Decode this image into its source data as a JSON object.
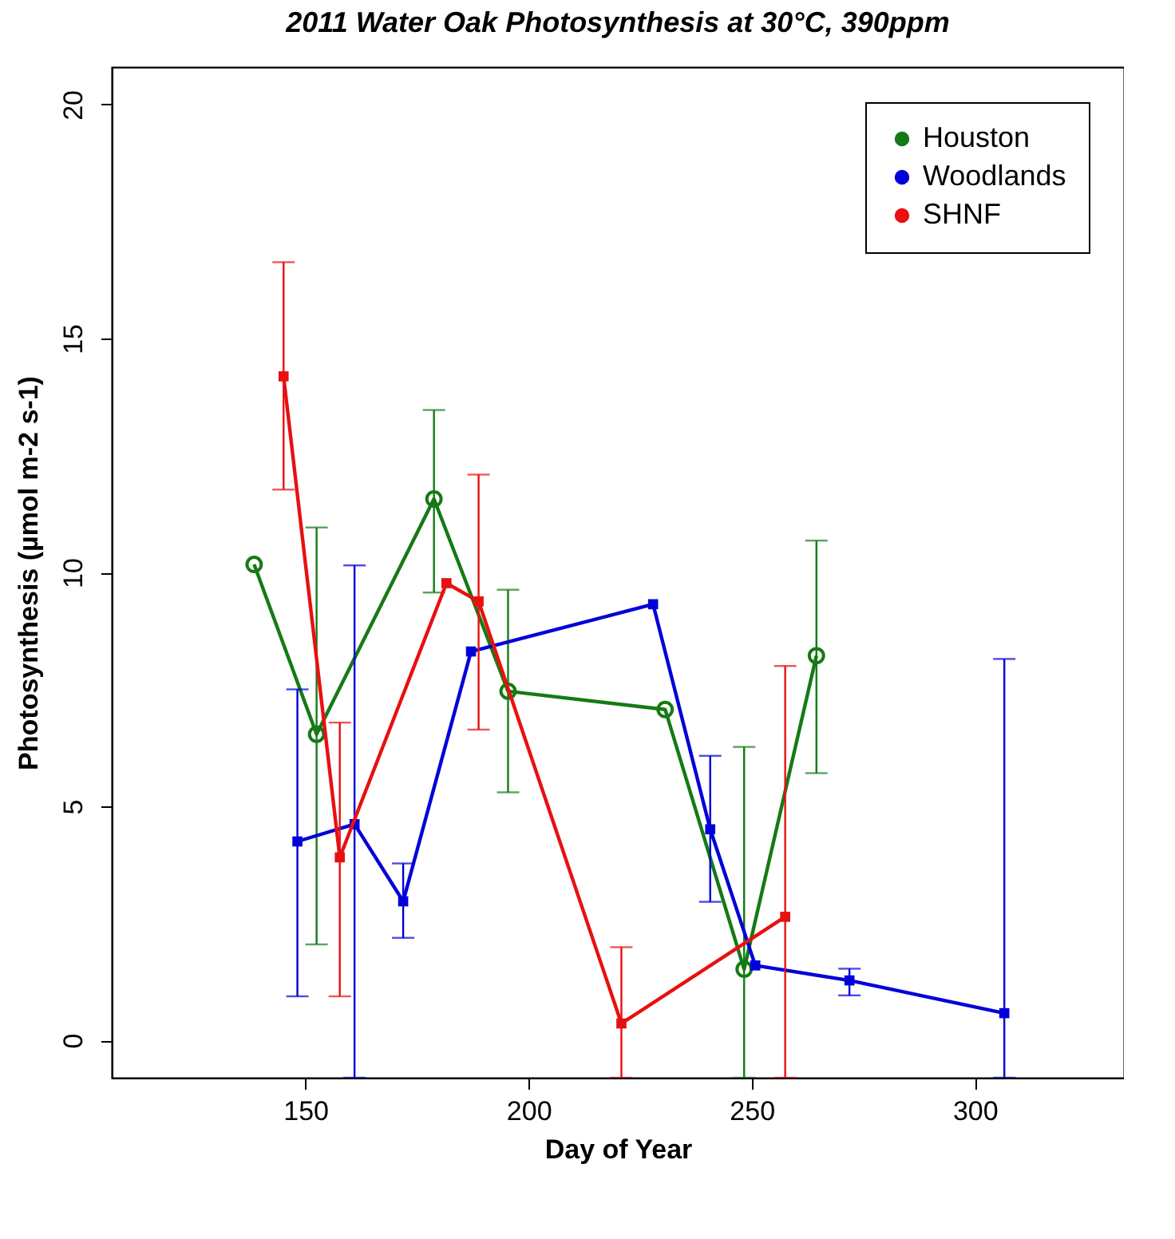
{
  "chart_data": {
    "type": "line",
    "title": "2011 Water Oak Photosynthesis at 30°C, 390ppm",
    "xlabel": "Day of Year",
    "ylabel": "Photosynthesis (µmol m-2 s-1)",
    "xlim": [
      106.6,
      333.4
    ],
    "xticks": [
      150,
      200,
      250,
      300
    ],
    "ylim": [
      -0.8,
      20.8
    ],
    "yticks": [
      0,
      5,
      10,
      15,
      20
    ],
    "grid": false,
    "legend": "top right",
    "line_style": "solid",
    "series": [
      {
        "name": "Houston",
        "color": "#157a15",
        "marker": "circle",
        "x": [
          138.5,
          152.5,
          178.8,
          195.4,
          230.6,
          248.3,
          264.5
        ],
        "values": [
          10.17,
          6.54,
          11.57,
          7.46,
          7.07,
          1.52,
          8.22
        ],
        "errors": [
          null,
          [
            2.05,
            10.96
          ],
          [
            9.57,
            13.47
          ],
          [
            5.3,
            9.63
          ],
          null,
          [
            -0.8,
            6.27
          ],
          [
            5.71,
            10.68
          ]
        ]
      },
      {
        "name": "Woodlands",
        "color": "#0000d8",
        "marker": "square",
        "x": [
          148.2,
          161.0,
          171.9,
          187.1,
          227.9,
          240.7,
          250.8,
          271.9,
          306.6
        ],
        "values": [
          4.25,
          4.62,
          2.97,
          8.31,
          9.32,
          4.51,
          1.6,
          1.28,
          0.58
        ],
        "errors": [
          [
            0.94,
            7.5
          ],
          [
            -0.8,
            10.15
          ],
          [
            2.19,
            3.78
          ],
          null,
          null,
          [
            2.96,
            6.08
          ],
          null,
          [
            0.96,
            1.53
          ],
          [
            -0.8,
            8.15
          ]
        ]
      },
      {
        "name": "SHNF",
        "color": "#e81010",
        "marker": "square",
        "x": [
          145.1,
          157.7,
          181.6,
          188.8,
          220.8,
          257.5
        ],
        "values": [
          14.19,
          3.91,
          9.77,
          9.38,
          0.36,
          2.64
        ],
        "errors": [
          [
            11.77,
            16.63
          ],
          [
            0.94,
            6.79
          ],
          null,
          [
            6.64,
            12.09
          ],
          [
            -0.8,
            1.99
          ],
          [
            -0.8,
            8.0
          ]
        ]
      }
    ]
  }
}
